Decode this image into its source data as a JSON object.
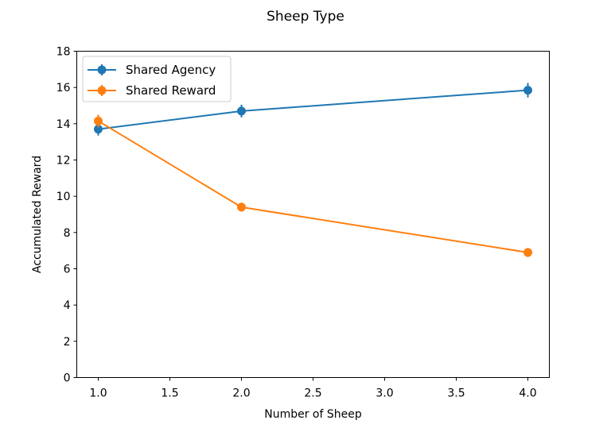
{
  "chart_data": {
    "type": "line",
    "title": "Sheep Type",
    "xlabel": "Number of Sheep",
    "ylabel": "Accumulated Reward",
    "xlim": [
      0.85,
      4.15
    ],
    "ylim": [
      0,
      18
    ],
    "xticks": [
      1.0,
      1.5,
      2.0,
      2.5,
      3.0,
      3.5,
      4.0
    ],
    "xtick_labels": [
      "1.0",
      "1.5",
      "2.0",
      "2.5",
      "3.0",
      "3.5",
      "4.0"
    ],
    "yticks": [
      0,
      2,
      4,
      6,
      8,
      10,
      12,
      14,
      16,
      18
    ],
    "ytick_labels": [
      "0",
      "2",
      "4",
      "6",
      "8",
      "10",
      "12",
      "14",
      "16",
      "18"
    ],
    "x": [
      1,
      2,
      4
    ],
    "series": [
      {
        "name": "Shared Agency",
        "values": [
          13.7,
          14.7,
          15.85
        ],
        "errors": [
          0.35,
          0.35,
          0.4
        ],
        "color": "#1f77b4"
      },
      {
        "name": "Shared Reward",
        "values": [
          14.15,
          9.4,
          6.9
        ],
        "errors": [
          0.35,
          0.25,
          0.25
        ],
        "color": "#ff7f0e"
      }
    ],
    "grid": false,
    "legend": "upper-left"
  }
}
